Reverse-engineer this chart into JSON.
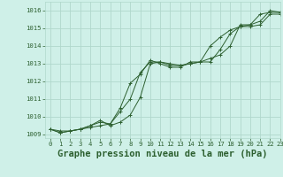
{
  "background_color": "#cff0e8",
  "grid_color": "#b0d8cc",
  "line_color": "#2d6030",
  "xlabel": "Graphe pression niveau de la mer (hPa)",
  "xlabel_fontsize": 7.5,
  "ylim": [
    1008.8,
    1016.5
  ],
  "xlim": [
    -0.5,
    23
  ],
  "yticks": [
    1009,
    1010,
    1011,
    1012,
    1013,
    1014,
    1015,
    1016
  ],
  "xticks": [
    0,
    1,
    2,
    3,
    4,
    5,
    6,
    7,
    8,
    9,
    10,
    11,
    12,
    13,
    14,
    15,
    16,
    17,
    18,
    19,
    20,
    21,
    22,
    23
  ],
  "series": [
    [
      1009.3,
      1009.2,
      1009.2,
      1009.3,
      1009.4,
      1009.5,
      1009.6,
      1010.3,
      1011.0,
      1012.5,
      1013.1,
      1013.1,
      1013.0,
      1012.9,
      1013.0,
      1013.1,
      1013.1,
      1013.8,
      1014.7,
      1015.1,
      1015.2,
      1015.8,
      1015.9,
      1015.9
    ],
    [
      1009.3,
      1009.1,
      1009.2,
      1009.3,
      1009.5,
      1009.7,
      1009.6,
      1010.5,
      1011.9,
      1012.4,
      1013.2,
      1013.0,
      1012.8,
      1012.8,
      1013.1,
      1013.1,
      1014.0,
      1014.5,
      1014.9,
      1015.1,
      1015.1,
      1015.2,
      1015.8,
      1015.8
    ],
    [
      1009.3,
      1009.1,
      1009.2,
      1009.3,
      1009.5,
      1009.8,
      1009.5,
      1009.7,
      1010.1,
      1011.1,
      1013.0,
      1013.1,
      1012.9,
      1012.9,
      1013.0,
      1013.1,
      1013.3,
      1013.5,
      1014.0,
      1015.2,
      1015.2,
      1015.4,
      1016.0,
      1015.9
    ]
  ],
  "tick_fontsize": 5.2,
  "linewidth": 0.7,
  "markersize": 2.5
}
